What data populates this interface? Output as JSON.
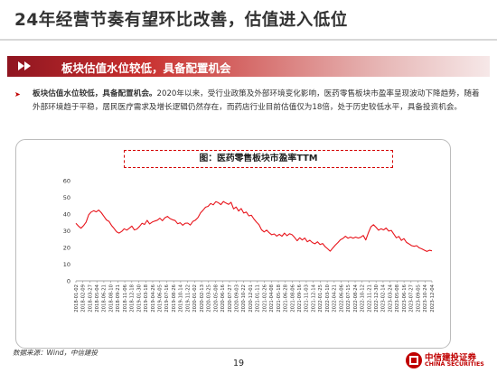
{
  "page": {
    "title": "24年经营节奏有望环比改善，估值进入低位",
    "section_title": "板块估值水位较低，具备配置机会",
    "bullet": {
      "bold": "板块估值水位较低，具备配置机会。",
      "text": "2020年以来，受行业政策及外部环境变化影响，医药零售板块市盈率呈现波动下降趋势，随着外部环境趋于平稳，居民医疗需求及增长逻辑仍然存在，而药店行业目前估值仅为18倍，处于历史较低水平，具备投资机会。"
    },
    "source": "数据来源：Wind，中信建投",
    "page_number": "19",
    "logo": {
      "cn": "中信建投证券",
      "en": "CHINA SECURITIES"
    }
  },
  "colors": {
    "accent": "#c00000",
    "line": "#e8141b",
    "section_gradient_start": "#8f1520"
  },
  "chart_data": {
    "type": "line",
    "title": "图：医药零售板块市盈率TTM",
    "xlabel": "",
    "ylabel": "",
    "ylim": [
      0,
      60
    ],
    "yticks": [
      0,
      10,
      20,
      30,
      40,
      50,
      60
    ],
    "grid": false,
    "legend": "none",
    "x_tick_labels": [
      "2018-01-02",
      "2018-02-09",
      "2018-03-27",
      "2018-05-04",
      "2018-06-21",
      "2018-08-10",
      "2018-09-21",
      "2018-11-06",
      "2018-12-18",
      "2019-01-30",
      "2019-03-18",
      "2019-04-26",
      "2019-06-05",
      "2019-07-16",
      "2019-08-26",
      "2019-10-14",
      "2019-11-22",
      "2020-01-02",
      "2020-02-13",
      "2020-03-25",
      "2020-05-08",
      "2020-06-16",
      "2020-07-27",
      "2020-09-03",
      "2020-10-22",
      "2020-12-01",
      "2021-01-11",
      "2021-02-26",
      "2021-04-08",
      "2021-05-18",
      "2021-06-28",
      "2021-08-06",
      "2021-09-16",
      "2021-11-03",
      "2021-12-14",
      "2022-01-25",
      "2022-03-10",
      "2022-04-21",
      "2022-06-06",
      "2022-07-15",
      "2022-08-24",
      "2022-10-12",
      "2022-11-21",
      "2022-12-30",
      "2023-02-14",
      "2023-03-24",
      "2023-05-08",
      "2023-06-16",
      "2023-07-27",
      "2023-09-05",
      "2023-10-24",
      "2023-12-04"
    ],
    "series": [
      {
        "values": [
          34.5,
          32.8,
          31.5,
          33.0,
          35.2,
          39.5,
          41.2,
          42.0,
          41.3,
          42.4,
          40.8,
          38.6,
          36.5,
          35.6,
          33.2,
          31.4,
          29.4,
          28.6,
          29.6,
          31.2,
          30.4,
          31.5,
          32.8,
          30.5,
          31.0,
          32.6,
          34.5,
          33.8,
          36.2,
          34.1,
          35.2,
          35.8,
          36.3,
          37.5,
          36.0,
          37.8,
          38.6,
          37.3,
          36.6,
          36.1,
          34.2,
          34.8,
          33.3,
          34.5,
          34.6,
          33.4,
          35.6,
          36.4,
          37.9,
          40.7,
          42.3,
          44.1,
          44.6,
          46.3,
          45.5,
          47.4,
          46.8,
          45.6,
          47.5,
          46.6,
          45.8,
          47.0,
          43.1,
          44.2,
          41.8,
          43.3,
          40.6,
          41.2,
          38.9,
          39.3,
          37.0,
          35.2,
          33.6,
          30.6,
          29.3,
          30.4,
          28.8,
          27.6,
          28.1,
          26.8,
          27.9,
          26.7,
          28.6,
          27.0,
          28.2,
          27.6,
          26.0,
          24.0,
          25.8,
          24.5,
          25.6,
          23.4,
          24.3,
          22.9,
          22.2,
          23.4,
          21.8,
          22.4,
          20.5,
          19.2,
          17.8,
          19.6,
          21.4,
          22.9,
          24.6,
          25.4,
          26.7,
          25.5,
          26.2,
          25.5,
          26.2,
          25.6,
          26.1,
          27.2,
          24.5,
          28.7,
          32.4,
          33.6,
          32.1,
          30.3,
          31.2,
          30.5,
          31.6,
          29.8,
          30.2,
          28.0,
          25.8,
          26.6,
          24.2,
          25.3,
          23.0,
          22.1,
          21.1,
          20.7,
          21.1,
          19.8,
          19.2,
          18.4,
          17.6,
          18.3,
          18.0
        ]
      }
    ]
  }
}
